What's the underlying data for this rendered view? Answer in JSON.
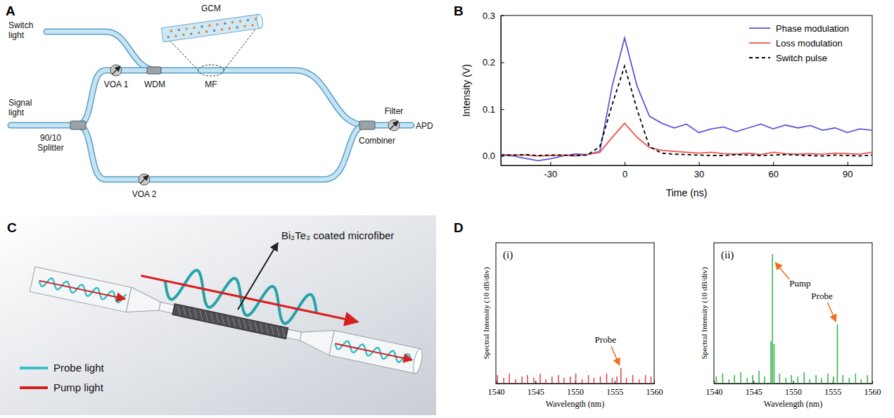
{
  "panel_letters": [
    "A",
    "B",
    "C",
    "D"
  ],
  "panel_a": {
    "labels": {
      "switch_light": "Switch light",
      "signal_light": "Signal light",
      "splitter": "90/10 Splitter",
      "voa1": "VOA 1",
      "wdm": "WDM",
      "mf": "MF",
      "gcm": "GCM",
      "voa2": "VOA 2",
      "combiner": "Combiner",
      "filter": "Filter",
      "apd": "APD"
    }
  },
  "panel_c": {
    "labels": {
      "coating": "Bi₂Te₃ coated microfiber",
      "probe": "Probe light",
      "pump": "Pump light"
    }
  },
  "chart_data": [
    {
      "type": "line",
      "xlabel": "Time (ns)",
      "ylabel": "Intensity (V)",
      "x": [
        -50,
        -45,
        -40,
        -35,
        -30,
        -25,
        -20,
        -15,
        -10,
        -5,
        0,
        5,
        10,
        15,
        20,
        25,
        30,
        35,
        40,
        45,
        50,
        55,
        60,
        65,
        70,
        75,
        80,
        85,
        90,
        95,
        100
      ],
      "series": [
        {
          "name": "Phase modulation",
          "color": "#5b5bd8",
          "line_style": "solid",
          "values": [
            0.002,
            0,
            -0.005,
            -0.01,
            -0.006,
            0,
            0.004,
            0.003,
            0.01,
            0.15,
            0.252,
            0.15,
            0.085,
            0.07,
            0.06,
            0.068,
            0.05,
            0.058,
            0.062,
            0.052,
            0.06,
            0.068,
            0.058,
            0.066,
            0.06,
            0.065,
            0.055,
            0.06,
            0.05,
            0.058,
            0.055
          ]
        },
        {
          "name": "Loss modulation",
          "color": "#ef5350",
          "line_style": "solid",
          "values": [
            0.003,
            0.002,
            0.002,
            0,
            0.001,
            0.002,
            0,
            0.003,
            0.008,
            0.04,
            0.07,
            0.04,
            0.018,
            0.012,
            0.01,
            0.008,
            0.006,
            0.008,
            0.005,
            0.004,
            0.006,
            0.003,
            0.008,
            0.005,
            0.004,
            0.005,
            0.004,
            0.006,
            0.005,
            0.004,
            0.008
          ]
        },
        {
          "name": "Switch pulse",
          "color": "#000000",
          "line_style": "dashed",
          "values": [
            0.002,
            0.002,
            0.003,
            0.001,
            0.002,
            0.002,
            0.001,
            0.002,
            0.02,
            0.11,
            0.192,
            0.1,
            0.02,
            0.006,
            0.004,
            0.003,
            0.002,
            0.001,
            0.001,
            0.003,
            0.002,
            0.001,
            0.002,
            0.003,
            0.002,
            0.001,
            0,
            0.002,
            0.001,
            0,
            0.002
          ]
        }
      ],
      "xlim": [
        -50,
        100
      ],
      "xticks": [
        -30,
        0,
        30,
        60,
        90
      ],
      "ylim": [
        -0.02,
        0.3
      ],
      "yticks": [
        {
          "value": 0,
          "label": "0.0"
        },
        0.1,
        0.2,
        0.3
      ],
      "grid": false,
      "legend": "upper right"
    },
    {
      "type": "stem",
      "title": "(i)",
      "xlabel": "Wavelength (nm)",
      "ylabel": "Spectral Intensity (10 dB/div)",
      "x": [
        1540.2,
        1541.0,
        1541.7,
        1542.5,
        1543.3,
        1544.0,
        1544.8,
        1545.6,
        1546.3,
        1547.1,
        1547.9,
        1548.6,
        1549.4,
        1550.1,
        1550.9,
        1551.7,
        1552.4,
        1553.2,
        1554.0,
        1554.7,
        1555.3,
        1555.8,
        1556.5,
        1557.3,
        1558.1,
        1558.9,
        1559.6
      ],
      "values": [
        6,
        4,
        7,
        3,
        5,
        6,
        4,
        7,
        3,
        5,
        6,
        4,
        5,
        7,
        3,
        6,
        4,
        5,
        7,
        4,
        5,
        11,
        4,
        6,
        3,
        6,
        5
      ],
      "color": "#e8474a",
      "xlim": [
        1540,
        1560
      ],
      "xticks": [
        1540,
        1545,
        1550,
        1555,
        1560
      ],
      "ylim": [
        0,
        100
      ],
      "tick_labels": "x",
      "grid": false,
      "annotations": [
        {
          "text": "Probe",
          "x": 1555.8
        }
      ]
    },
    {
      "type": "stem",
      "title": "(ii)",
      "xlabel": "Wavelength (nm)",
      "ylabel": "Spectral Intensity (10 dB/div)",
      "x": [
        1540.3,
        1541.1,
        1541.9,
        1542.6,
        1543.4,
        1544.2,
        1544.9,
        1545.7,
        1546.4,
        1547.2,
        1547.4,
        1547.6,
        1548.3,
        1549.1,
        1549.8,
        1550.6,
        1551.4,
        1552.1,
        1552.9,
        1553.6,
        1554.4,
        1555.1,
        1555.6,
        1556.3,
        1557.1,
        1557.9,
        1558.6,
        1559.4
      ],
      "values": [
        5,
        7,
        3,
        6,
        8,
        4,
        6,
        9,
        5,
        30,
        92,
        28,
        7,
        4,
        6,
        5,
        8,
        3,
        6,
        4,
        7,
        5,
        42,
        6,
        4,
        7,
        3,
        6
      ],
      "color": "#3cb44b",
      "xlim": [
        1540,
        1560
      ],
      "xticks": [
        1540,
        1545,
        1550,
        1555,
        1560
      ],
      "ylim": [
        0,
        100
      ],
      "tick_labels": "x",
      "grid": false,
      "annotations": [
        {
          "text": "Pump",
          "x": 1547.4
        },
        {
          "text": "Probe",
          "x": 1555.6
        }
      ]
    }
  ]
}
